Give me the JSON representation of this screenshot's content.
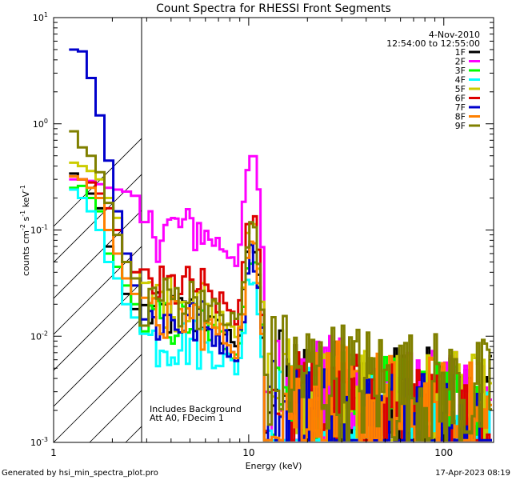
{
  "chart_data": {
    "type": "line",
    "title": "Count Spectra for RHESSI Front Segments",
    "xlabel": "Energy (keV)",
    "ylabel": "counts cm",
    "ylabel_sup1": "-2",
    "ylabel_mid": " s",
    "ylabel_sup2": "-1",
    "ylabel_end": " keV",
    "ylabel_sup3": "-1",
    "xscale": "log",
    "yscale": "log",
    "xlim": [
      1,
      180
    ],
    "ylim": [
      0.001,
      10
    ],
    "x_ticks": [
      {
        "value": 1,
        "label": "1"
      },
      {
        "value": 10,
        "label": "10"
      },
      {
        "value": 100,
        "label": "100"
      }
    ],
    "y_ticks": [
      {
        "value": 10,
        "base": "10",
        "exp": "1"
      },
      {
        "value": 1,
        "base": "10",
        "exp": "0"
      },
      {
        "value": 0.1,
        "base": "10",
        "exp": "-1"
      },
      {
        "value": 0.01,
        "base": "10",
        "exp": "-2"
      },
      {
        "value": 0.001,
        "base": "10",
        "exp": "-3"
      }
    ],
    "date": "4-Nov-2010",
    "time_range": "12:54:00 to 12:55:00",
    "annotations": [
      "Includes Background",
      "Att A0, FDecim 1"
    ],
    "hatched_region_keV": [
      1,
      3
    ],
    "footer_left": "Generated by hsi_min_spectra_plot.pro",
    "footer_right": "17-Apr-2023 08:19",
    "series": [
      {
        "name": "1F",
        "color": "#000000",
        "low": [
          0.34,
          0.3,
          0.22,
          0.16,
          0.07,
          0.045,
          0.025,
          0.018
        ],
        "cont": 0.014,
        "tail": 0.004
      },
      {
        "name": "2F",
        "color": "#ff00ff",
        "low": [
          0.3,
          0.3,
          0.29,
          0.27,
          0.25,
          0.24,
          0.23,
          0.21
        ],
        "cont": 0.09,
        "tail": 0.004
      },
      {
        "name": "3F",
        "color": "#00ff00",
        "low": [
          0.25,
          0.26,
          0.2,
          0.15,
          0.06,
          0.045,
          0.03,
          0.02
        ],
        "cont": 0.012,
        "tail": 0.003
      },
      {
        "name": "4F",
        "color": "#00ffff",
        "low": [
          0.24,
          0.2,
          0.15,
          0.1,
          0.05,
          0.035,
          0.02,
          0.015
        ],
        "cont": 0.008,
        "tail": 0.002
      },
      {
        "name": "5F",
        "color": "#cccc00",
        "low": [
          0.43,
          0.4,
          0.36,
          0.3,
          0.2,
          0.13,
          0.06,
          0.04
        ],
        "cont": 0.02,
        "tail": 0.004
      },
      {
        "name": "6F",
        "color": "#dd0000",
        "low": [
          0.32,
          0.3,
          0.28,
          0.22,
          0.16,
          0.1,
          0.06,
          0.04
        ],
        "cont": 0.025,
        "tail": 0.003
      },
      {
        "name": "7F",
        "color": "#0000cc",
        "low": [
          5.0,
          4.8,
          2.7,
          1.2,
          0.45,
          0.15,
          0.06,
          0.03
        ],
        "cont": 0.012,
        "tail": 0.0025
      },
      {
        "name": "8F",
        "color": "#ff8000",
        "low": [
          0.32,
          0.3,
          0.25,
          0.2,
          0.1,
          0.06,
          0.035,
          0.025
        ],
        "cont": 0.013,
        "tail": 0.0035
      },
      {
        "name": "9F",
        "color": "#808000",
        "low": [
          0.85,
          0.6,
          0.5,
          0.35,
          0.18,
          0.09,
          0.05,
          0.035
        ],
        "cont": 0.02,
        "tail": 0.006
      }
    ]
  }
}
